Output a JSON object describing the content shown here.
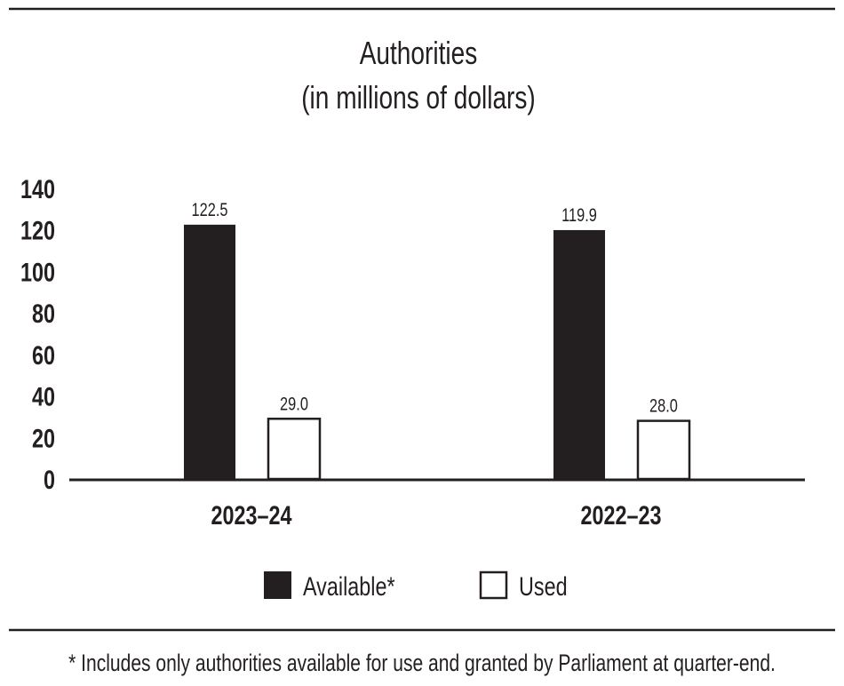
{
  "chart_data": {
    "type": "bar",
    "title": "Authorities",
    "subtitle": "(in millions of dollars)",
    "categories": [
      "2023–24",
      "2022–23"
    ],
    "series": [
      {
        "name": "Available*",
        "values": [
          122.5,
          119.9
        ],
        "color": "#231f20"
      },
      {
        "name": "Used",
        "values": [
          29.0,
          28.0
        ],
        "color": "#ffffff"
      }
    ],
    "data_labels": [
      [
        "122.5",
        "119.9"
      ],
      [
        "29.0",
        "28.0"
      ]
    ],
    "yticks": [
      0,
      20,
      40,
      60,
      80,
      100,
      120,
      140
    ],
    "ylim": [
      0,
      140
    ],
    "grid": false,
    "legend": "bottom",
    "xlabel": "",
    "ylabel": ""
  },
  "footnote": "* Includes only authorities available for use and granted by Parliament at quarter-end."
}
